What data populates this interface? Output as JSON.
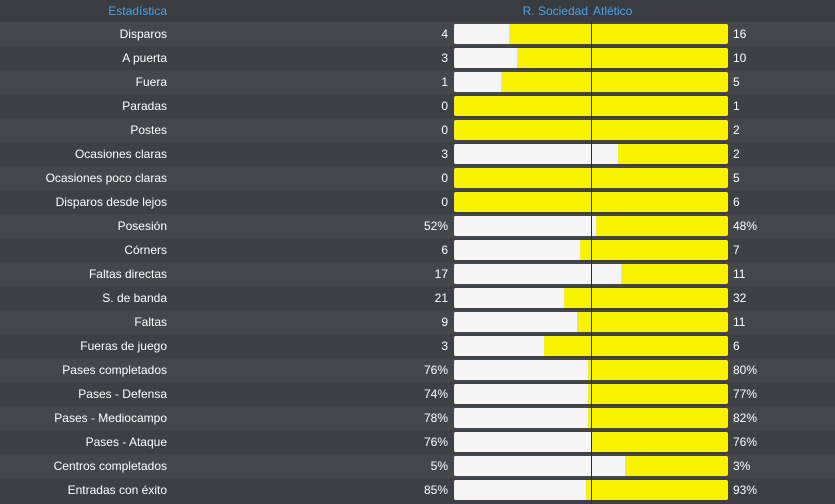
{
  "header": {
    "column_title": "Estadística",
    "home_team": "R. Sociedad",
    "away_team": "Atlético"
  },
  "colors": {
    "home_bar": "#f5f5f5",
    "away_bar": "#f8f400",
    "header_text": "#4aa3e6"
  },
  "stats": [
    {
      "label": "Disparos",
      "home": "4",
      "away": "16",
      "home_share": 0.2
    },
    {
      "label": "A puerta",
      "home": "3",
      "away": "10",
      "home_share": 0.23
    },
    {
      "label": "Fuera",
      "home": "1",
      "away": "5",
      "home_share": 0.17
    },
    {
      "label": "Paradas",
      "home": "0",
      "away": "1",
      "home_share": 0.0
    },
    {
      "label": "Postes",
      "home": "0",
      "away": "2",
      "home_share": 0.0
    },
    {
      "label": "Ocasiones claras",
      "home": "3",
      "away": "2",
      "home_share": 0.6
    },
    {
      "label": "Ocasiones poco claras",
      "home": "0",
      "away": "5",
      "home_share": 0.0
    },
    {
      "label": "Disparos desde lejos",
      "home": "0",
      "away": "6",
      "home_share": 0.0
    },
    {
      "label": "Posesión",
      "home": "52%",
      "away": "48%",
      "home_share": 0.52
    },
    {
      "label": "Córners",
      "home": "6",
      "away": "7",
      "home_share": 0.46
    },
    {
      "label": "Faltas directas",
      "home": "17",
      "away": "11",
      "home_share": 0.61
    },
    {
      "label": "S. de banda",
      "home": "21",
      "away": "32",
      "home_share": 0.4
    },
    {
      "label": "Faltas",
      "home": "9",
      "away": "11",
      "home_share": 0.45
    },
    {
      "label": "Fueras de juego",
      "home": "3",
      "away": "6",
      "home_share": 0.33
    },
    {
      "label": "Pases completados",
      "home": "76%",
      "away": "80%",
      "home_share": 0.49
    },
    {
      "label": "Pases - Defensa",
      "home": "74%",
      "away": "77%",
      "home_share": 0.49
    },
    {
      "label": "Pases - Mediocampo",
      "home": "78%",
      "away": "82%",
      "home_share": 0.49
    },
    {
      "label": "Pases - Ataque",
      "home": "76%",
      "away": "76%",
      "home_share": 0.5
    },
    {
      "label": "Centros completados",
      "home": "5%",
      "away": "3%",
      "home_share": 0.625
    },
    {
      "label": "Entradas con éxito",
      "home": "85%",
      "away": "93%",
      "home_share": 0.48
    }
  ]
}
